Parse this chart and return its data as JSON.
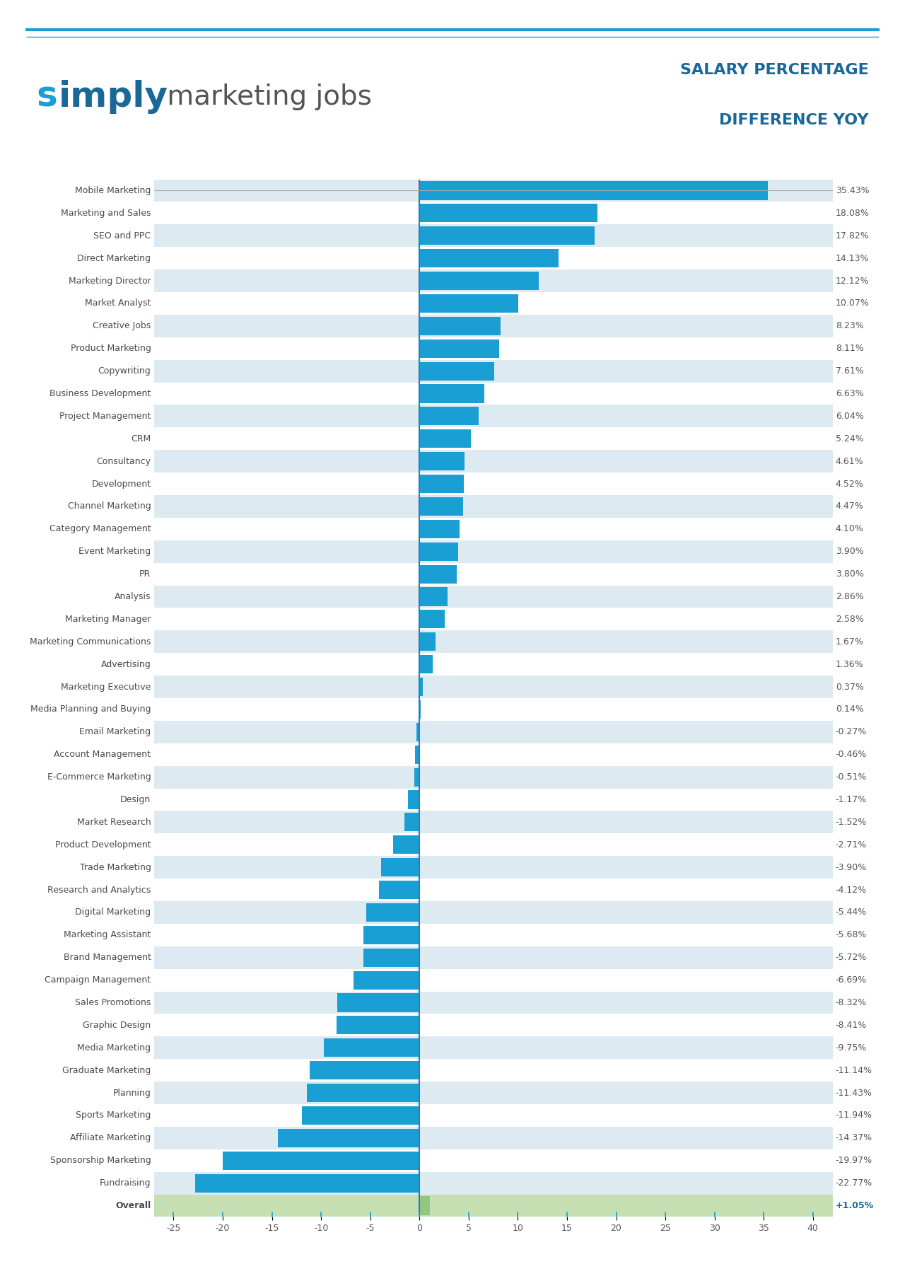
{
  "categories": [
    "Mobile Marketing",
    "Marketing and Sales",
    "SEO and PPC",
    "Direct Marketing",
    "Marketing Director",
    "Market Analyst",
    "Creative Jobs",
    "Product Marketing",
    "Copywriting",
    "Business Development",
    "Project Management",
    "CRM",
    "Consultancy",
    "Development",
    "Channel Marketing",
    "Category Management",
    "Event Marketing",
    "PR",
    "Analysis",
    "Marketing Manager",
    "Marketing Communications",
    "Advertising",
    "Marketing Executive",
    "Media Planning and Buying",
    "Email Marketing",
    "Account Management",
    "E-Commerce Marketing",
    "Design",
    "Market Research",
    "Product Development",
    "Trade Marketing",
    "Research and Analytics",
    "Digital Marketing",
    "Marketing Assistant",
    "Brand Management",
    "Campaign Management",
    "Sales Promotions",
    "Graphic Design",
    "Media Marketing",
    "Graduate Marketing",
    "Planning",
    "Sports Marketing",
    "Affiliate Marketing",
    "Sponsorship Marketing",
    "Fundraising",
    "Overall"
  ],
  "values": [
    35.43,
    18.08,
    17.82,
    14.13,
    12.12,
    10.07,
    8.23,
    8.11,
    7.61,
    6.63,
    6.04,
    5.24,
    4.61,
    4.52,
    4.47,
    4.1,
    3.9,
    3.8,
    2.86,
    2.58,
    1.67,
    1.36,
    0.37,
    0.14,
    -0.27,
    -0.46,
    -0.51,
    -1.17,
    -1.52,
    -2.71,
    -3.9,
    -4.12,
    -5.44,
    -5.68,
    -5.72,
    -6.69,
    -8.32,
    -8.41,
    -9.75,
    -11.14,
    -11.43,
    -11.94,
    -14.37,
    -19.97,
    -22.77,
    1.05
  ],
  "value_labels": [
    "35.43%",
    "18.08%",
    "17.82%",
    "14.13%",
    "12.12%",
    "10.07%",
    "8.23%",
    "8.11%",
    "7.61%",
    "6.63%",
    "6.04%",
    "5.24%",
    "4.61%",
    "4.52%",
    "4.47%",
    "4.10%",
    "3.90%",
    "3.80%",
    "2.86%",
    "2.58%",
    "1.67%",
    "1.36%",
    "0.37%",
    "0.14%",
    "-0.27%",
    "-0.46%",
    "-0.51%",
    "-1.17%",
    "-1.52%",
    "-2.71%",
    "-3.90%",
    "-4.12%",
    "-5.44%",
    "-5.68%",
    "-5.72%",
    "-6.69%",
    "-8.32%",
    "-8.41%",
    "-9.75%",
    "-11.14%",
    "-11.43%",
    "-11.94%",
    "-14.37%",
    "-19.97%",
    "-22.77%",
    "+1.05%"
  ],
  "bar_color_positive": "#1a9fd4",
  "bar_color_negative": "#1a9fd4",
  "bar_color_overall": "#90c97e",
  "bg_color_even": "#deeaf1",
  "bg_color_odd": "#ffffff",
  "bg_color_overall": "#c6e0b4",
  "title_line1": "SALARY PERCENTAGE",
  "title_line2": "DIFFERENCE YOY",
  "title_color": "#1a6898",
  "xlim": [
    -27,
    42
  ],
  "xticks": [
    -25,
    -20,
    -15,
    -10,
    -5,
    0,
    5,
    10,
    15,
    20,
    25,
    30,
    35,
    40
  ],
  "header_line_color": "#1a9fd4",
  "text_color": "#4a4a4a",
  "label_color_positive": "#555555",
  "label_color_negative": "#555555",
  "label_color_overall": "#1a6898"
}
